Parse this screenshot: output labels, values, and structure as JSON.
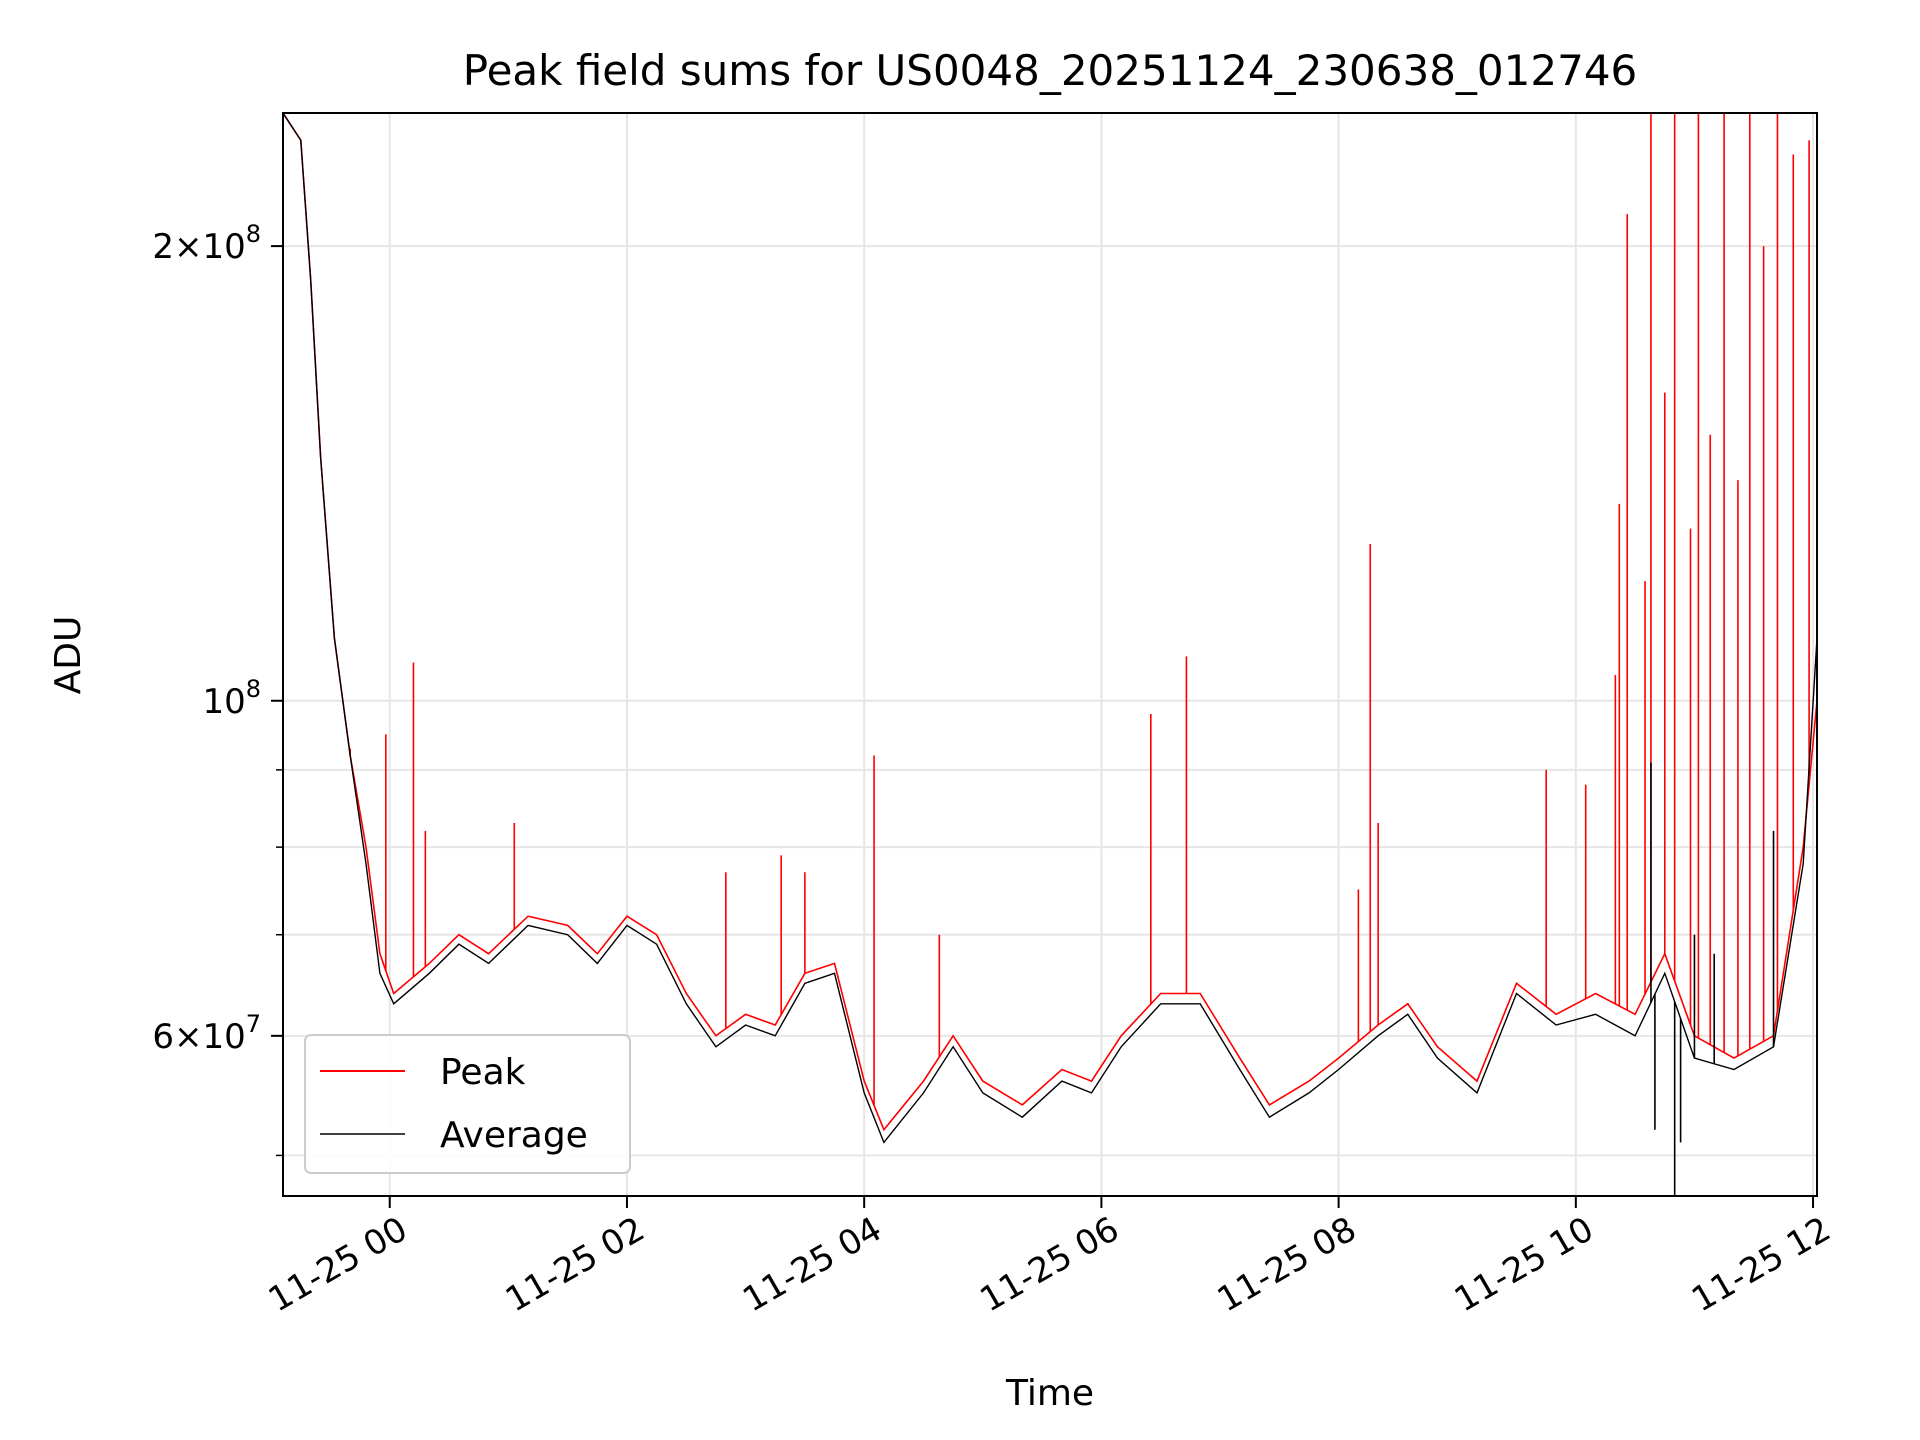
{
  "chart_data": {
    "type": "line",
    "title": "Peak field sums for US0048_20251124_230638_012746",
    "xlabel": "Time",
    "ylabel": "ADU",
    "x_ticks": [
      "11-25 00",
      "11-25 02",
      "11-25 04",
      "11-25 06",
      "11-25 08",
      "11-25 10",
      "11-25 12"
    ],
    "y_scale": "log",
    "y_ticks": [
      {
        "value": 60000000,
        "mantissa": "6",
        "base": "10",
        "exp": "7"
      },
      {
        "value": 100000000,
        "mantissa": "",
        "base": "10",
        "exp": "8"
      },
      {
        "value": 200000000,
        "mantissa": "2",
        "base": "10",
        "exp": "8"
      }
    ],
    "xlim": [
      "2025-11-24 23:06",
      "2025-11-25 12:02"
    ],
    "ylim": [
      47000000,
      245000000
    ],
    "grid": true,
    "legend_position": "lower-left",
    "series": [
      {
        "name": "Peak",
        "color": "#ff0000",
        "points": [
          [
            "2025-11-24 23:06",
            245000000
          ],
          [
            "2025-11-24 23:15",
            235000000
          ],
          [
            "2025-11-24 23:20",
            190000000
          ],
          [
            "2025-11-24 23:25",
            145000000
          ],
          [
            "2025-11-24 23:32",
            110000000
          ],
          [
            "2025-11-24 23:40",
            92000000
          ],
          [
            "2025-11-24 23:48",
            80000000
          ],
          [
            "2025-11-24 23:55",
            68000000
          ],
          [
            "2025-11-25 00:02",
            64000000
          ],
          [
            "2025-11-25 00:20",
            67000000
          ],
          [
            "2025-11-25 00:35",
            70000000
          ],
          [
            "2025-11-25 00:50",
            68000000
          ],
          [
            "2025-11-25 01:10",
            72000000
          ],
          [
            "2025-11-25 01:30",
            71000000
          ],
          [
            "2025-11-25 01:45",
            68000000
          ],
          [
            "2025-11-25 02:00",
            72000000
          ],
          [
            "2025-11-25 02:15",
            70000000
          ],
          [
            "2025-11-25 02:30",
            64000000
          ],
          [
            "2025-11-25 02:45",
            60000000
          ],
          [
            "2025-11-25 03:00",
            62000000
          ],
          [
            "2025-11-25 03:15",
            61000000
          ],
          [
            "2025-11-25 03:30",
            66000000
          ],
          [
            "2025-11-25 03:45",
            67000000
          ],
          [
            "2025-11-25 04:00",
            56000000
          ],
          [
            "2025-11-25 04:10",
            52000000
          ],
          [
            "2025-11-25 04:30",
            56000000
          ],
          [
            "2025-11-25 04:45",
            60000000
          ],
          [
            "2025-11-25 05:00",
            56000000
          ],
          [
            "2025-11-25 05:20",
            54000000
          ],
          [
            "2025-11-25 05:40",
            57000000
          ],
          [
            "2025-11-25 05:55",
            56000000
          ],
          [
            "2025-11-25 06:10",
            60000000
          ],
          [
            "2025-11-25 06:30",
            64000000
          ],
          [
            "2025-11-25 06:50",
            64000000
          ],
          [
            "2025-11-25 07:10",
            58000000
          ],
          [
            "2025-11-25 07:25",
            54000000
          ],
          [
            "2025-11-25 07:45",
            56000000
          ],
          [
            "2025-11-25 08:00",
            58000000
          ],
          [
            "2025-11-25 08:20",
            61000000
          ],
          [
            "2025-11-25 08:35",
            63000000
          ],
          [
            "2025-11-25 08:50",
            59000000
          ],
          [
            "2025-11-25 09:10",
            56000000
          ],
          [
            "2025-11-25 09:30",
            65000000
          ],
          [
            "2025-11-25 09:50",
            62000000
          ],
          [
            "2025-11-25 10:10",
            64000000
          ],
          [
            "2025-11-25 10:30",
            62000000
          ],
          [
            "2025-11-25 10:45",
            68000000
          ],
          [
            "2025-11-25 11:00",
            60000000
          ],
          [
            "2025-11-25 11:20",
            58000000
          ],
          [
            "2025-11-25 11:40",
            60000000
          ],
          [
            "2025-11-25 11:55",
            80000000
          ],
          [
            "2025-11-25 12:02",
            100000000
          ]
        ],
        "spikes": [
          [
            "2025-11-24 23:40",
            93000000
          ],
          [
            "2025-11-24 23:58",
            95000000
          ],
          [
            "2025-11-25 00:12",
            106000000
          ],
          [
            "2025-11-25 00:18",
            82000000
          ],
          [
            "2025-11-25 01:03",
            83000000
          ],
          [
            "2025-11-25 02:50",
            77000000
          ],
          [
            "2025-11-25 03:18",
            79000000
          ],
          [
            "2025-11-25 03:30",
            77000000
          ],
          [
            "2025-11-25 04:05",
            92000000
          ],
          [
            "2025-11-25 04:38",
            70000000
          ],
          [
            "2025-11-25 06:25",
            98000000
          ],
          [
            "2025-11-25 06:43",
            107000000
          ],
          [
            "2025-11-25 08:16",
            127000000
          ],
          [
            "2025-11-25 08:20",
            83000000
          ],
          [
            "2025-11-25 08:10",
            75000000
          ],
          [
            "2025-11-25 09:45",
            90000000
          ],
          [
            "2025-11-25 10:05",
            88000000
          ],
          [
            "2025-11-25 10:20",
            104000000
          ],
          [
            "2025-11-25 10:22",
            135000000
          ],
          [
            "2025-11-25 10:26",
            210000000
          ],
          [
            "2025-11-25 10:35",
            120000000
          ],
          [
            "2025-11-25 10:38",
            245000000
          ],
          [
            "2025-11-25 10:45",
            160000000
          ],
          [
            "2025-11-25 10:50",
            245000000
          ],
          [
            "2025-11-25 10:58",
            130000000
          ],
          [
            "2025-11-25 11:02",
            245000000
          ],
          [
            "2025-11-25 11:08",
            150000000
          ],
          [
            "2025-11-25 11:15",
            245000000
          ],
          [
            "2025-11-25 11:22",
            140000000
          ],
          [
            "2025-11-25 11:28",
            245000000
          ],
          [
            "2025-11-25 11:35",
            200000000
          ],
          [
            "2025-11-25 11:42",
            245000000
          ],
          [
            "2025-11-25 11:50",
            230000000
          ],
          [
            "2025-11-25 11:58",
            235000000
          ]
        ]
      },
      {
        "name": "Average",
        "color": "#000000",
        "points": [
          [
            "2025-11-24 23:06",
            245000000
          ],
          [
            "2025-11-24 23:15",
            235000000
          ],
          [
            "2025-11-24 23:20",
            190000000
          ],
          [
            "2025-11-24 23:25",
            145000000
          ],
          [
            "2025-11-24 23:32",
            110000000
          ],
          [
            "2025-11-24 23:40",
            92000000
          ],
          [
            "2025-11-24 23:48",
            78000000
          ],
          [
            "2025-11-24 23:55",
            66000000
          ],
          [
            "2025-11-25 00:02",
            63000000
          ],
          [
            "2025-11-25 00:20",
            66000000
          ],
          [
            "2025-11-25 00:35",
            69000000
          ],
          [
            "2025-11-25 00:50",
            67000000
          ],
          [
            "2025-11-25 01:10",
            71000000
          ],
          [
            "2025-11-25 01:30",
            70000000
          ],
          [
            "2025-11-25 01:45",
            67000000
          ],
          [
            "2025-11-25 02:00",
            71000000
          ],
          [
            "2025-11-25 02:15",
            69000000
          ],
          [
            "2025-11-25 02:30",
            63000000
          ],
          [
            "2025-11-25 02:45",
            59000000
          ],
          [
            "2025-11-25 03:00",
            61000000
          ],
          [
            "2025-11-25 03:15",
            60000000
          ],
          [
            "2025-11-25 03:30",
            65000000
          ],
          [
            "2025-11-25 03:45",
            66000000
          ],
          [
            "2025-11-25 04:00",
            55000000
          ],
          [
            "2025-11-25 04:10",
            51000000
          ],
          [
            "2025-11-25 04:30",
            55000000
          ],
          [
            "2025-11-25 04:45",
            59000000
          ],
          [
            "2025-11-25 05:00",
            55000000
          ],
          [
            "2025-11-25 05:20",
            53000000
          ],
          [
            "2025-11-25 05:40",
            56000000
          ],
          [
            "2025-11-25 05:55",
            55000000
          ],
          [
            "2025-11-25 06:10",
            59000000
          ],
          [
            "2025-11-25 06:30",
            63000000
          ],
          [
            "2025-11-25 06:50",
            63000000
          ],
          [
            "2025-11-25 07:10",
            57000000
          ],
          [
            "2025-11-25 07:25",
            53000000
          ],
          [
            "2025-11-25 07:45",
            55000000
          ],
          [
            "2025-11-25 08:00",
            57000000
          ],
          [
            "2025-11-25 08:20",
            60000000
          ],
          [
            "2025-11-25 08:35",
            62000000
          ],
          [
            "2025-11-25 08:50",
            58000000
          ],
          [
            "2025-11-25 09:10",
            55000000
          ],
          [
            "2025-11-25 09:30",
            64000000
          ],
          [
            "2025-11-25 09:50",
            61000000
          ],
          [
            "2025-11-25 10:10",
            62000000
          ],
          [
            "2025-11-25 10:30",
            60000000
          ],
          [
            "2025-11-25 10:45",
            66000000
          ],
          [
            "2025-11-25 11:00",
            58000000
          ],
          [
            "2025-11-25 11:20",
            57000000
          ],
          [
            "2025-11-25 11:40",
            59000000
          ],
          [
            "2025-11-25 11:55",
            78000000
          ],
          [
            "2025-11-25 12:02",
            110000000
          ]
        ],
        "spikes": [
          [
            "2025-11-25 10:38",
            91000000
          ],
          [
            "2025-11-25 10:40",
            52000000
          ],
          [
            "2025-11-25 10:50",
            47000000
          ],
          [
            "2025-11-25 10:53",
            51000000
          ],
          [
            "2025-11-25 11:00",
            70000000
          ],
          [
            "2025-11-25 11:10",
            68000000
          ],
          [
            "2025-11-25 11:40",
            82000000
          ]
        ]
      }
    ]
  }
}
